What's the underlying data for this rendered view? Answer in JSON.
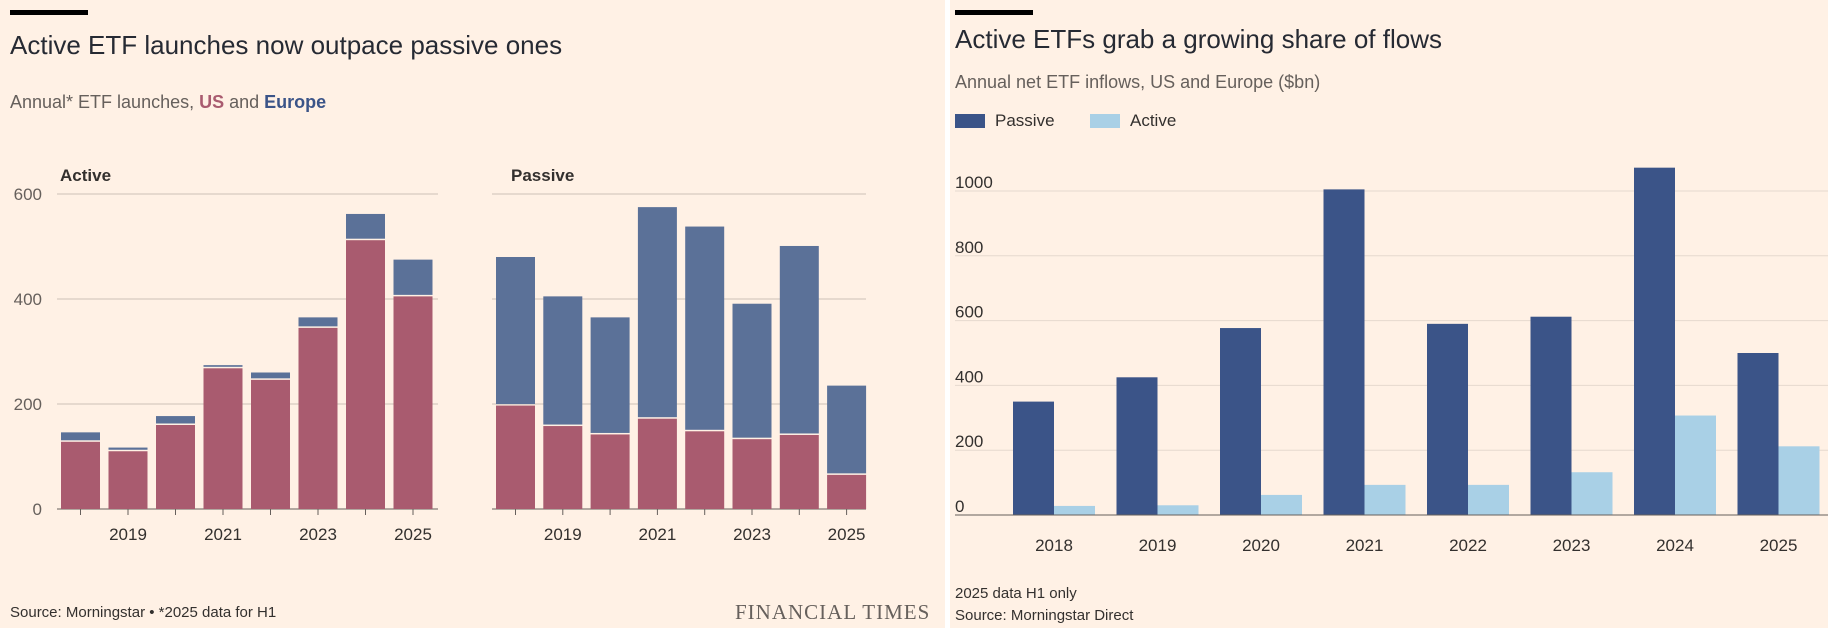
{
  "left": {
    "title": "Active ETF launches now outpace passive ones",
    "subtitle_prefix": "Annual* ETF launches, ",
    "subtitle_us": "US",
    "subtitle_and": " and ",
    "subtitle_europe": "Europe",
    "source": "Source: Morningstar • *2025 data for H1",
    "logo": "FINANCIAL TIMES",
    "colors": {
      "us": "#a95b6f",
      "europe": "#5b7198"
    }
  },
  "right": {
    "title": "Active ETFs grab a growing share of flows",
    "subtitle": "Annual net ETF inflows, US and Europe ($bn)",
    "note": "2025 data H1 only",
    "source": "Source: Morningstar Direct",
    "colors": {
      "passive": "#3b5488",
      "active": "#a9d0e6"
    }
  },
  "chart_data": [
    {
      "type": "bar",
      "stacked": true,
      "title": "Active",
      "categories": [
        "2018",
        "2019",
        "2020",
        "2021",
        "2022",
        "2023",
        "2024",
        "2025"
      ],
      "series": [
        {
          "name": "US",
          "values": [
            128,
            110,
            160,
            268,
            246,
            345,
            512,
            405
          ]
        },
        {
          "name": "Europe",
          "values": [
            18,
            7,
            17,
            6,
            14,
            20,
            50,
            70
          ]
        }
      ],
      "ylim": [
        0,
        600
      ],
      "yticks": [
        "0",
        "200",
        "400",
        "600"
      ],
      "xticks": [
        "2019",
        "2021",
        "2023",
        "2025"
      ]
    },
    {
      "type": "bar",
      "stacked": true,
      "title": "Passive",
      "categories": [
        "2018",
        "2019",
        "2020",
        "2021",
        "2022",
        "2023",
        "2024",
        "2025"
      ],
      "series": [
        {
          "name": "US",
          "values": [
            197,
            158,
            142,
            172,
            148,
            133,
            141,
            65
          ]
        },
        {
          "name": "Europe",
          "values": [
            283,
            247,
            223,
            403,
            390,
            258,
            360,
            170
          ]
        }
      ],
      "ylim": [
        0,
        600
      ],
      "yticks": [
        "0",
        "200",
        "400",
        "600"
      ],
      "xticks": [
        "2019",
        "2021",
        "2023",
        "2025"
      ]
    },
    {
      "type": "bar",
      "title": "Active ETFs grab a growing share of flows",
      "categories": [
        "2018",
        "2019",
        "2020",
        "2021",
        "2022",
        "2023",
        "2024",
        "2025"
      ],
      "series": [
        {
          "name": "Passive",
          "values": [
            350,
            425,
            577,
            1005,
            590,
            612,
            1072,
            500
          ]
        },
        {
          "name": "Active",
          "values": [
            28,
            30,
            62,
            93,
            93,
            132,
            307,
            212
          ]
        }
      ],
      "ylabel": "$bn",
      "ylim": [
        0,
        1000
      ],
      "yticks": [
        "0",
        "200",
        "400",
        "600",
        "800",
        "1000"
      ]
    }
  ]
}
